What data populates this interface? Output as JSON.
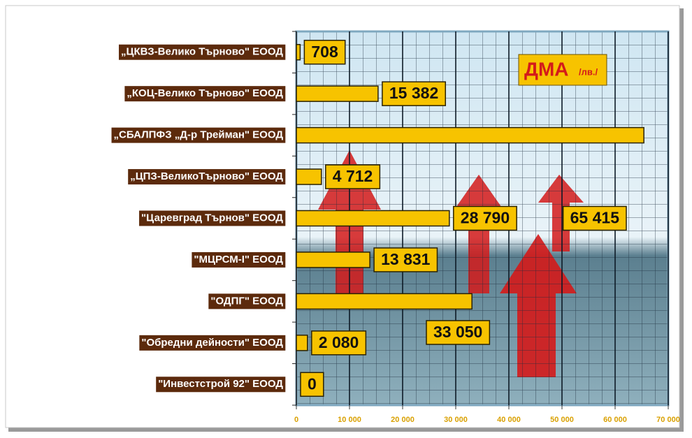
{
  "chart_data": {
    "type": "bar",
    "orientation": "horizontal",
    "title": "ДМА",
    "subtitle": "/лв./",
    "categories": [
      "„ЦКВЗ-Велико Търново\" ЕООД",
      "„КОЦ-Велико Търново\"  ЕООД",
      "„СБАЛПФЗ „Д-р Трейман\" ЕООД",
      "„ЦПЗ-ВеликоТърново\" ЕООД",
      "\"Царевград  Търнов\" ЕООД",
      "\"МЦРСМ-I\"  ЕООД",
      "\"ОДПГ\" ЕООД",
      "\"Обредни дейности\"  ЕООД",
      "\"Инвестстрой  92\" ЕООД"
    ],
    "values": [
      708,
      15382,
      65415,
      4712,
      28790,
      13831,
      33050,
      2080,
      0
    ],
    "value_labels": [
      "708",
      "15 382",
      "65 415",
      "4 712",
      "28 790",
      "13 831",
      "33 050",
      "2 080",
      "0"
    ],
    "color": "#f7c300",
    "xlim": [
      0,
      70000
    ],
    "xticks": [
      0,
      {
        "value": 10000,
        "label": "10 000"
      },
      {
        "value": 20000,
        "label": "20 000"
      },
      {
        "value": 30000,
        "label": "30 000"
      },
      {
        "value": 40000,
        "label": "40 000"
      },
      {
        "value": 50000,
        "label": "50 000"
      },
      {
        "value": 60000,
        "label": "60 000"
      },
      {
        "value": 70000,
        "label": "70 000"
      }
    ],
    "grid": true
  }
}
